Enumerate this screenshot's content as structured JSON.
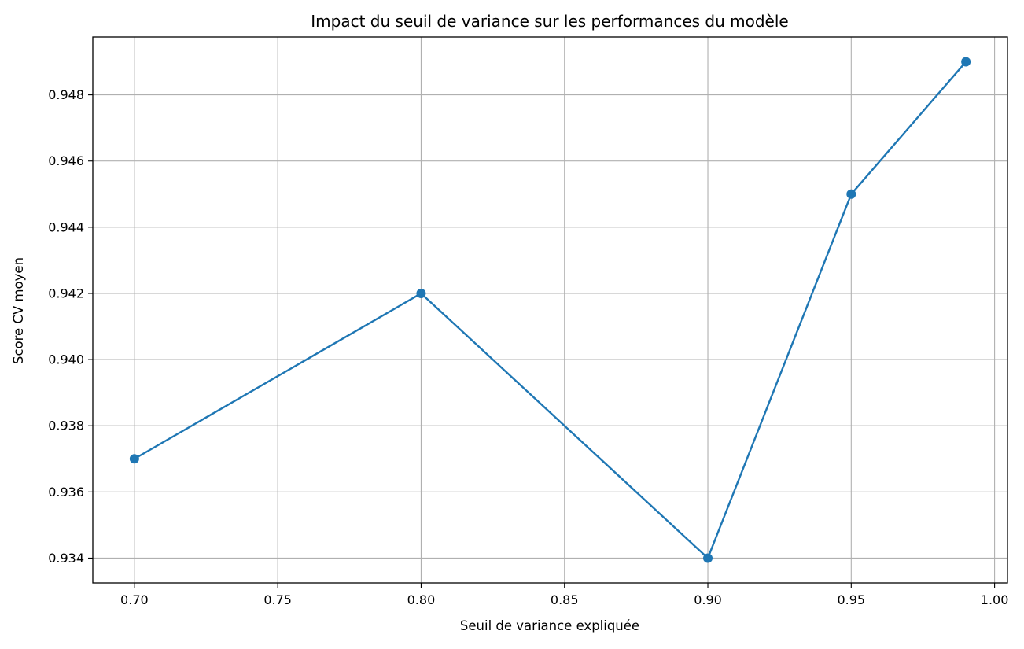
{
  "chart_data": {
    "type": "line",
    "title": "Impact du seuil de variance sur les performances du modèle",
    "xlabel": "Seuil de variance expliquée",
    "ylabel": "Score CV moyen",
    "x": [
      0.7,
      0.8,
      0.9,
      0.95,
      0.99
    ],
    "series": [
      {
        "values": [
          0.937,
          0.942,
          0.934,
          0.945,
          0.949
        ],
        "color": "#1f77b4",
        "marker": "circle"
      }
    ],
    "xlim": [
      0.6855,
      1.0045
    ],
    "ylim": [
      0.93325,
      0.94975
    ],
    "xticks": [
      0.7,
      0.75,
      0.8,
      0.85,
      0.9,
      0.95,
      1.0
    ],
    "xtick_labels": [
      "0.70",
      "0.75",
      "0.80",
      "0.85",
      "0.90",
      "0.95",
      "1.00"
    ],
    "yticks": [
      0.934,
      0.936,
      0.938,
      0.94,
      0.942,
      0.944,
      0.946,
      0.948
    ],
    "ytick_labels": [
      "0.934",
      "0.936",
      "0.938",
      "0.940",
      "0.942",
      "0.944",
      "0.946",
      "0.948"
    ],
    "grid": true,
    "grid_color": "#b0b0b0"
  }
}
